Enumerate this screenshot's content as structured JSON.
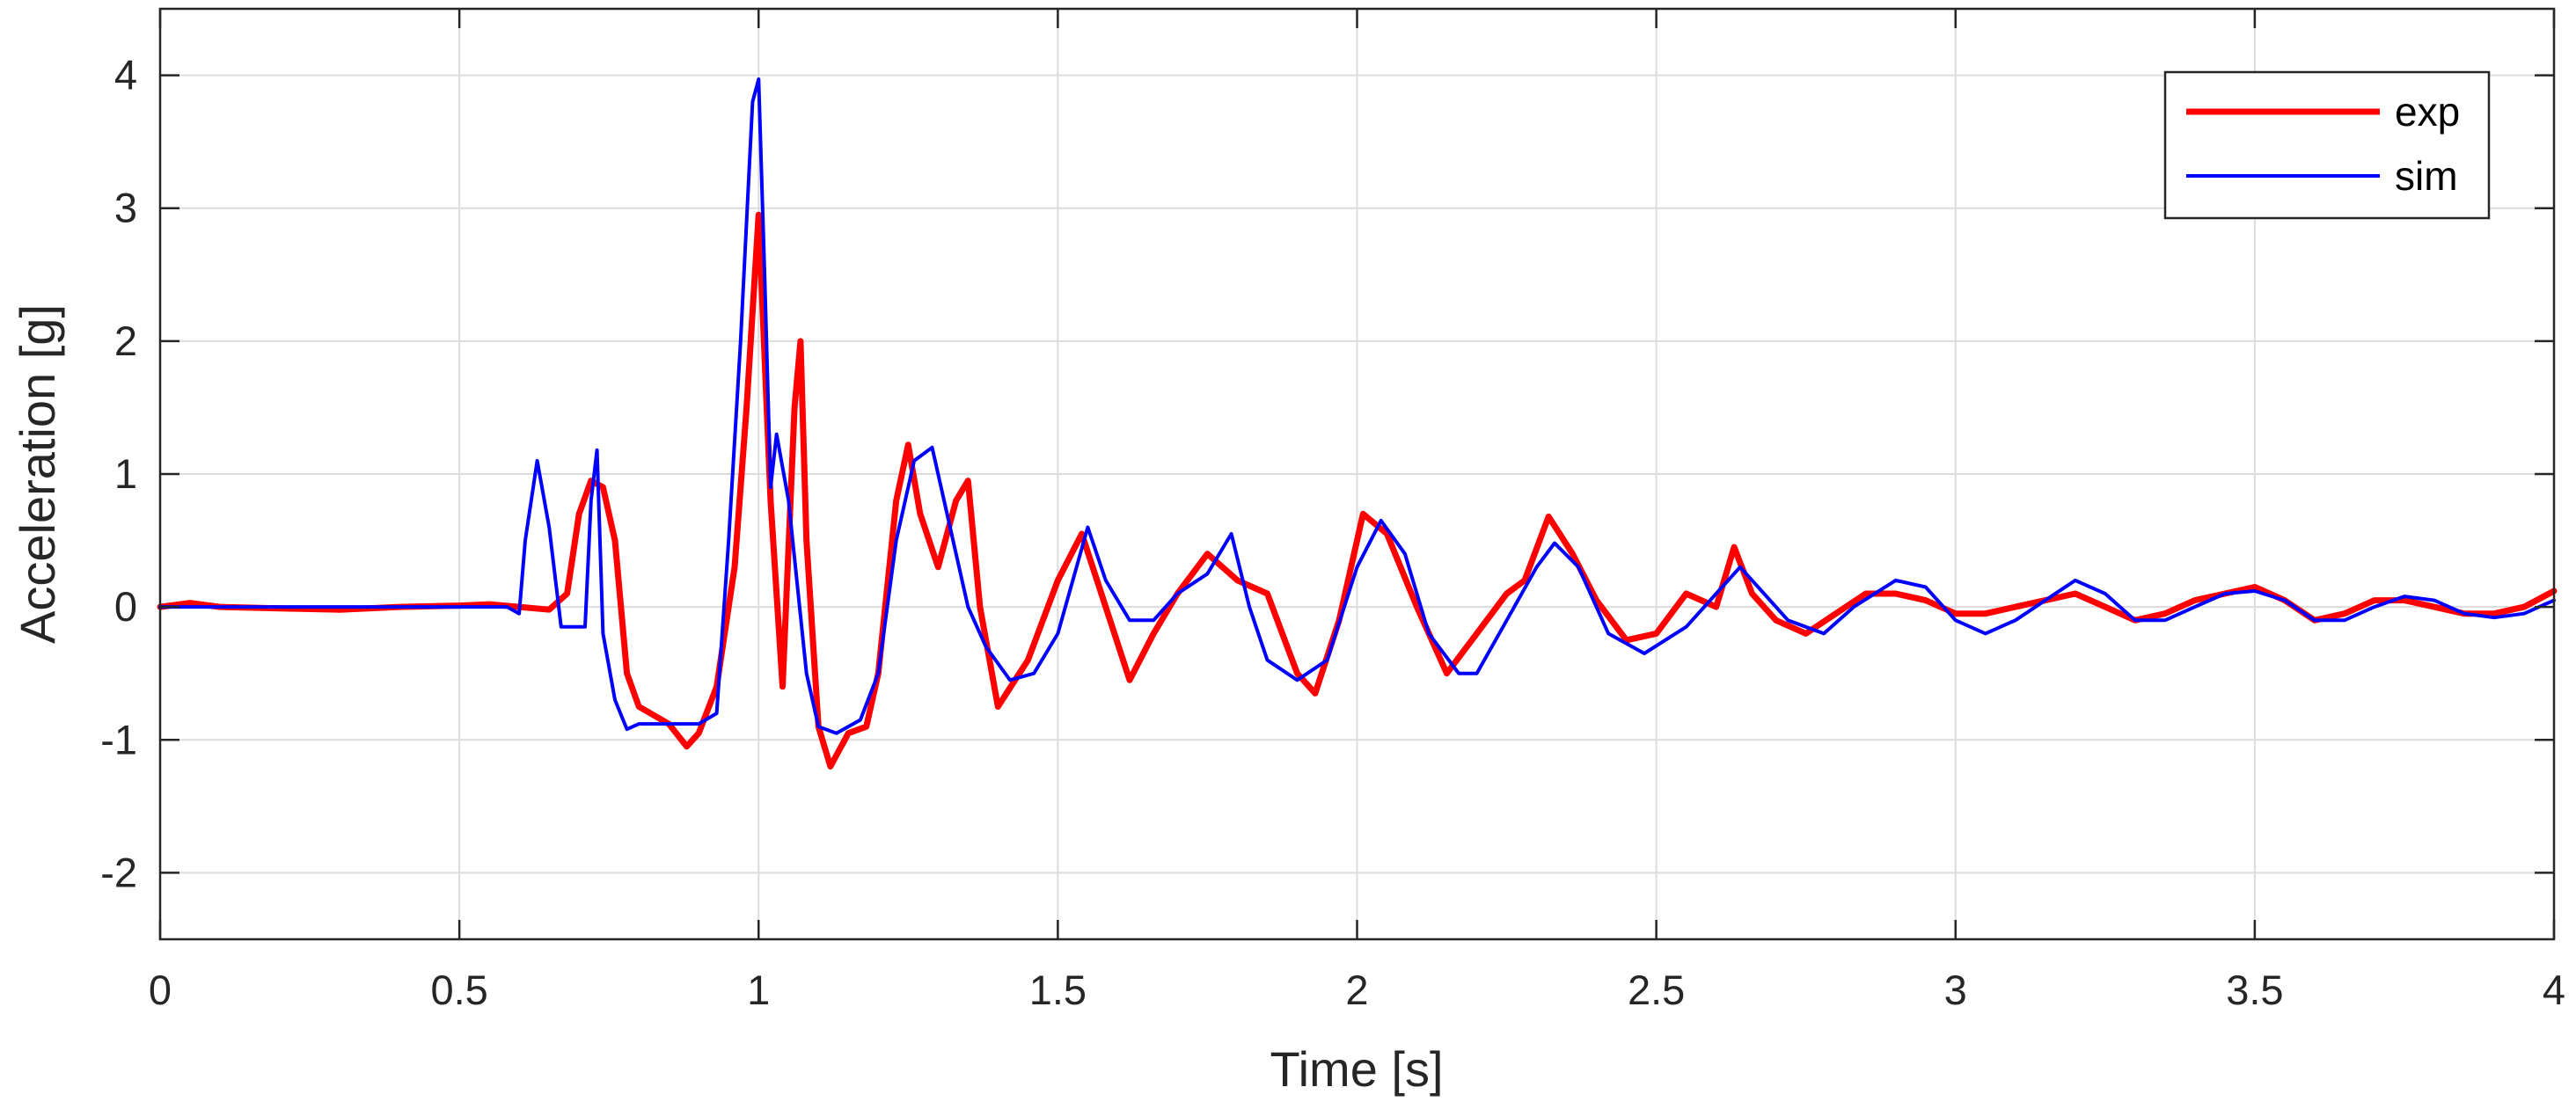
{
  "chart_data": {
    "type": "line",
    "title": "",
    "xlabel": "Time [s]",
    "ylabel": "Acceleration [g]",
    "xlim": [
      0,
      4
    ],
    "ylim": [
      -2.5,
      4.5
    ],
    "xticks": [
      0,
      0.5,
      1,
      1.5,
      2,
      2.5,
      3,
      3.5,
      4
    ],
    "xtick_labels": [
      "0",
      "0.5",
      "1",
      "1.5",
      "2",
      "2.5",
      "3",
      "3.5",
      "4"
    ],
    "yticks": [
      -2,
      -1,
      0,
      1,
      2,
      3,
      4
    ],
    "ytick_labels": [
      "-2",
      "-1",
      "0",
      "1",
      "2",
      "3",
      "4"
    ],
    "grid": true,
    "legend_position": "top-right",
    "series": [
      {
        "name": "exp",
        "color": "#ff0000",
        "x": [
          0,
          0.05,
          0.1,
          0.2,
          0.3,
          0.4,
          0.5,
          0.55,
          0.6,
          0.65,
          0.68,
          0.7,
          0.72,
          0.74,
          0.76,
          0.78,
          0.8,
          0.85,
          0.88,
          0.9,
          0.93,
          0.96,
          0.98,
          1.0,
          1.02,
          1.04,
          1.06,
          1.07,
          1.08,
          1.1,
          1.12,
          1.15,
          1.18,
          1.2,
          1.23,
          1.25,
          1.27,
          1.3,
          1.33,
          1.35,
          1.37,
          1.4,
          1.45,
          1.5,
          1.54,
          1.58,
          1.62,
          1.66,
          1.7,
          1.75,
          1.8,
          1.85,
          1.9,
          1.93,
          1.97,
          2.01,
          2.05,
          2.1,
          2.15,
          2.2,
          2.25,
          2.28,
          2.32,
          2.36,
          2.4,
          2.45,
          2.5,
          2.55,
          2.6,
          2.63,
          2.66,
          2.7,
          2.75,
          2.8,
          2.85,
          2.9,
          2.95,
          3.0,
          3.05,
          3.1,
          3.15,
          3.2,
          3.25,
          3.3,
          3.35,
          3.4,
          3.45,
          3.5,
          3.55,
          3.6,
          3.65,
          3.7,
          3.75,
          3.8,
          3.85,
          3.9,
          3.95,
          4.0
        ],
        "y": [
          0.0,
          0.03,
          0.0,
          -0.01,
          -0.02,
          0.0,
          0.01,
          0.02,
          0.0,
          -0.02,
          0.1,
          0.7,
          0.95,
          0.9,
          0.5,
          -0.5,
          -0.75,
          -0.88,
          -1.05,
          -0.95,
          -0.6,
          0.3,
          1.5,
          2.95,
          0.8,
          -0.6,
          1.5,
          2.0,
          0.5,
          -0.9,
          -1.2,
          -0.95,
          -0.9,
          -0.5,
          0.8,
          1.22,
          0.7,
          0.3,
          0.8,
          0.95,
          0.0,
          -0.75,
          -0.4,
          0.2,
          0.55,
          0.0,
          -0.55,
          -0.2,
          0.1,
          0.4,
          0.2,
          0.1,
          -0.5,
          -0.65,
          -0.1,
          0.7,
          0.55,
          0.0,
          -0.5,
          -0.2,
          0.1,
          0.2,
          0.68,
          0.4,
          0.05,
          -0.25,
          -0.2,
          0.1,
          0.0,
          0.45,
          0.1,
          -0.1,
          -0.2,
          -0.05,
          0.1,
          0.1,
          0.05,
          -0.05,
          -0.05,
          0.0,
          0.05,
          0.1,
          0.0,
          -0.1,
          -0.05,
          0.05,
          0.1,
          0.15,
          0.05,
          -0.1,
          -0.05,
          0.05,
          0.05,
          0.0,
          -0.05,
          -0.05,
          0.0,
          0.12
        ]
      },
      {
        "name": "sim",
        "color": "#0000ff",
        "x": [
          0,
          0.1,
          0.2,
          0.3,
          0.4,
          0.5,
          0.58,
          0.6,
          0.61,
          0.63,
          0.65,
          0.67,
          0.69,
          0.71,
          0.72,
          0.73,
          0.74,
          0.76,
          0.78,
          0.8,
          0.85,
          0.9,
          0.93,
          0.95,
          0.97,
          0.99,
          1.0,
          1.01,
          1.02,
          1.03,
          1.05,
          1.08,
          1.1,
          1.13,
          1.17,
          1.2,
          1.23,
          1.26,
          1.29,
          1.32,
          1.35,
          1.38,
          1.42,
          1.46,
          1.5,
          1.55,
          1.58,
          1.62,
          1.66,
          1.7,
          1.75,
          1.79,
          1.82,
          1.85,
          1.9,
          1.95,
          2.0,
          2.04,
          2.08,
          2.12,
          2.17,
          2.2,
          2.25,
          2.3,
          2.33,
          2.37,
          2.42,
          2.48,
          2.55,
          2.6,
          2.64,
          2.68,
          2.72,
          2.78,
          2.83,
          2.9,
          2.95,
          3.0,
          3.05,
          3.1,
          3.15,
          3.2,
          3.25,
          3.3,
          3.35,
          3.4,
          3.45,
          3.5,
          3.55,
          3.6,
          3.65,
          3.7,
          3.75,
          3.8,
          3.85,
          3.9,
          3.95,
          4.0
        ],
        "y": [
          0.0,
          0.0,
          0.0,
          0.0,
          0.0,
          0.0,
          0.0,
          -0.05,
          0.5,
          1.1,
          0.6,
          -0.15,
          -0.15,
          -0.15,
          0.8,
          1.18,
          -0.2,
          -0.7,
          -0.92,
          -0.88,
          -0.88,
          -0.88,
          -0.8,
          0.5,
          2.0,
          3.8,
          3.97,
          2.5,
          0.9,
          1.3,
          0.8,
          -0.5,
          -0.9,
          -0.95,
          -0.85,
          -0.5,
          0.5,
          1.1,
          1.2,
          0.6,
          0.0,
          -0.3,
          -0.55,
          -0.5,
          -0.2,
          0.6,
          0.2,
          -0.1,
          -0.1,
          0.1,
          0.25,
          0.55,
          0.0,
          -0.4,
          -0.55,
          -0.4,
          0.3,
          0.65,
          0.4,
          -0.2,
          -0.5,
          -0.5,
          -0.1,
          0.3,
          0.48,
          0.3,
          -0.2,
          -0.35,
          -0.15,
          0.1,
          0.3,
          0.1,
          -0.1,
          -0.2,
          0.0,
          0.2,
          0.15,
          -0.1,
          -0.2,
          -0.1,
          0.05,
          0.2,
          0.1,
          -0.1,
          -0.1,
          0.0,
          0.1,
          0.12,
          0.05,
          -0.1,
          -0.1,
          0.0,
          0.08,
          0.05,
          -0.05,
          -0.08,
          -0.05,
          0.05
        ]
      }
    ]
  }
}
